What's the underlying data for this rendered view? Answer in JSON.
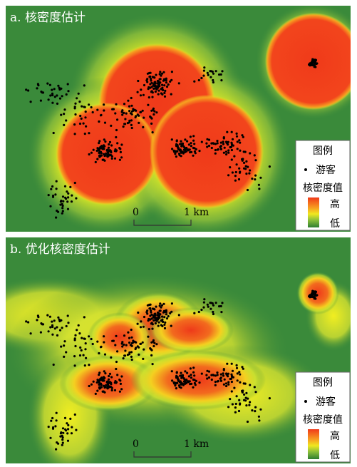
{
  "panels": [
    {
      "title": "a. 核密度估计",
      "legend": {
        "title": "图例",
        "point_label": "游客",
        "density_label": "核密度值",
        "high": "高",
        "low": "低"
      },
      "scale_bar": {
        "start": "0",
        "end": "1 km"
      }
    },
    {
      "title": "b. 优化核密度估计",
      "legend": {
        "title": "图例",
        "point_label": "游客",
        "density_label": "核密度值",
        "high": "高",
        "low": "低"
      },
      "scale_bar": {
        "start": "0",
        "end": "1 km"
      }
    }
  ]
}
